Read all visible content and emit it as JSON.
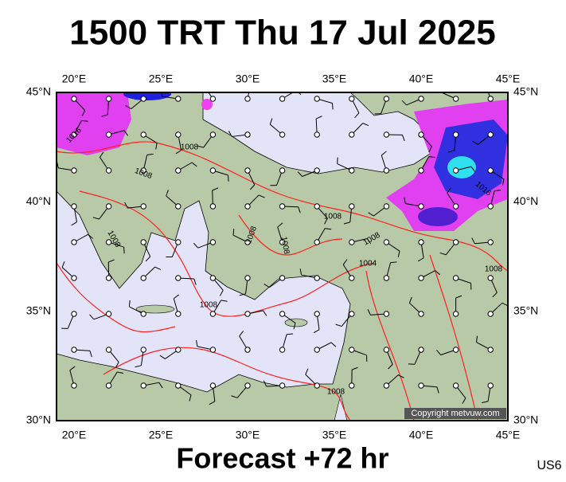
{
  "header": {
    "title": "1500 TRT Thu 17 Jul 2025"
  },
  "footer": {
    "subtitle": "Forecast +72 hr",
    "code": "US6"
  },
  "map": {
    "x_labels": [
      "20°E",
      "25°E",
      "30°E",
      "35°E",
      "40°E",
      "45°E"
    ],
    "y_labels": [
      "45°N",
      "40°N",
      "35°N",
      "30°N"
    ],
    "copyright": "Copyright metvuw.com",
    "isobar_labels": [
      "1016",
      "1008",
      "1008",
      "1008",
      "1008",
      "1008",
      "1008",
      "1008",
      "1004",
      "1008",
      "1008",
      "1008",
      "1016"
    ]
  }
}
